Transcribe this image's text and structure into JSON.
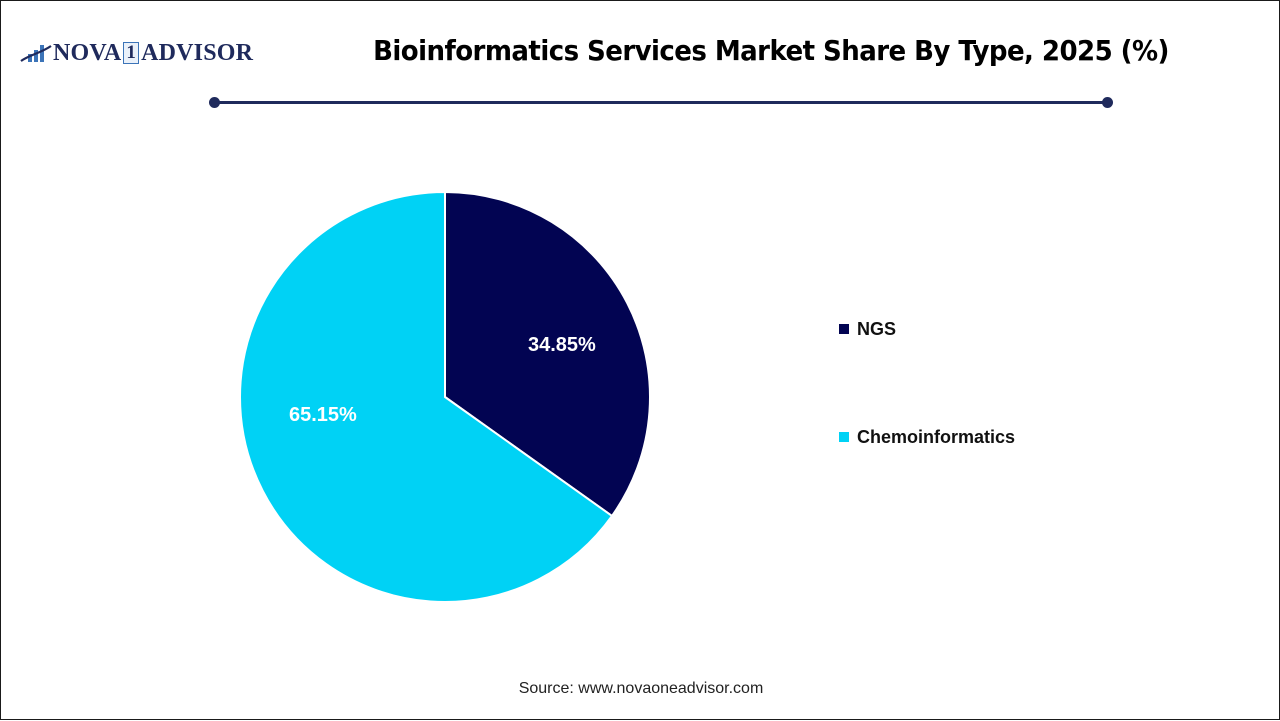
{
  "header": {
    "logo": {
      "text_left": "NOVA",
      "text_one": "1",
      "text_right": "ADVISOR",
      "icon": "bar-chart-swoosh-icon"
    },
    "title": "Bioinformatics Services Market Share By Type, 2025 (%)"
  },
  "colors": {
    "ngs": "#020452",
    "chemoinformatics": "#00d2f5",
    "rule": "#1f2a5c"
  },
  "legend": {
    "items": [
      {
        "label": "NGS",
        "color": "#020452"
      },
      {
        "label": "Chemoinformatics",
        "color": "#00d2f5"
      }
    ]
  },
  "labels": {
    "ngs": "34.85%",
    "chemoinformatics": "65.15%"
  },
  "footer": {
    "source": "Source: www.novaoneadvisor.com"
  },
  "chart_data": {
    "type": "pie",
    "title": "Bioinformatics Services Market Share By Type, 2025 (%)",
    "categories": [
      "NGS",
      "Chemoinformatics"
    ],
    "values": [
      34.85,
      65.15
    ],
    "unit": "%",
    "colors": [
      "#020452",
      "#00d2f5"
    ],
    "start_angle": "12 o'clock, clockwise",
    "legend_position": "right",
    "data_labels": [
      "34.85%",
      "65.15%"
    ]
  }
}
